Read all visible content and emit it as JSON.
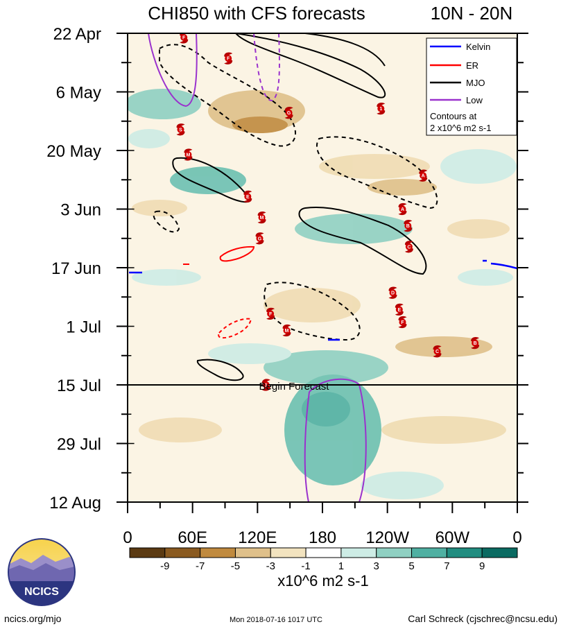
{
  "chart_data": {
    "type": "heatmap",
    "title": "CHI850 with CFS forecasts",
    "title_right": "10N - 20N",
    "y_tick_labels": [
      "22 Apr",
      "6 May",
      "20 May",
      "3 Jun",
      "17 Jun",
      "1 Jul",
      "15 Jul",
      "29 Jul",
      "12 Aug"
    ],
    "x_tick_labels": [
      "0",
      "60E",
      "120E",
      "180",
      "120W",
      "60W",
      "0"
    ],
    "x_range_deg": [
      0,
      360
    ],
    "y_range": [
      "2018-04-22",
      "2018-08-12"
    ],
    "forecast_start": "2018-07-15",
    "forecast_label": "Begin Forecast",
    "legend": {
      "position": "top-right",
      "entries": [
        {
          "name": "Kelvin",
          "color": "#0000ff"
        },
        {
          "name": "ER",
          "color": "#ff0000"
        },
        {
          "name": "MJO",
          "color": "#000000"
        },
        {
          "name": "Low",
          "color": "#9a32cd"
        }
      ],
      "note_line1": "Contours at",
      "note_line2": "2 x10^6 m2 s-1"
    },
    "colorbar": {
      "levels": [
        "-9",
        "-7",
        "-5",
        "-3",
        "-1",
        "1",
        "3",
        "5",
        "7",
        "9"
      ],
      "colors": [
        "#5b3a12",
        "#8a5a20",
        "#c08a3e",
        "#dfc08a",
        "#f2e3bf",
        "#ffffff",
        "#cdece5",
        "#8fd0c2",
        "#4fb0a2",
        "#218d80",
        "#0a6b62"
      ],
      "units": "x10^6 m2 s-1"
    },
    "storms": [
      {
        "label": "F",
        "lon": 52,
        "date": "2018-04-23"
      },
      {
        "label": "F",
        "lon": 93,
        "date": "2018-04-28"
      },
      {
        "label": "S",
        "lon": 49,
        "date": "2018-05-15"
      },
      {
        "label": "M",
        "lon": 56,
        "date": "2018-05-21"
      },
      {
        "label": "E",
        "lon": 111,
        "date": "2018-05-31"
      },
      {
        "label": "M",
        "lon": 124,
        "date": "2018-06-05"
      },
      {
        "label": "G",
        "lon": 122,
        "date": "2018-06-10"
      },
      {
        "label": "G",
        "lon": 149,
        "date": "2018-05-11"
      },
      {
        "label": "1",
        "lon": 234,
        "date": "2018-05-10"
      },
      {
        "label": "A",
        "lon": 273,
        "date": "2018-05-26"
      },
      {
        "label": "A",
        "lon": 254,
        "date": "2018-06-03"
      },
      {
        "label": "B",
        "lon": 259,
        "date": "2018-06-07"
      },
      {
        "label": "C",
        "lon": 260,
        "date": "2018-06-12"
      },
      {
        "label": "D",
        "lon": 245,
        "date": "2018-06-23"
      },
      {
        "label": "E",
        "lon": 251,
        "date": "2018-06-27"
      },
      {
        "label": "F",
        "lon": 254,
        "date": "2018-06-30"
      },
      {
        "label": "F",
        "lon": 132,
        "date": "2018-06-28"
      },
      {
        "label": "M",
        "lon": 147,
        "date": "2018-07-02"
      },
      {
        "label": "C",
        "lon": 286,
        "date": "2018-07-07"
      },
      {
        "label": "B",
        "lon": 321,
        "date": "2018-07-05"
      },
      {
        "label": "1",
        "lon": 128,
        "date": "2018-07-15"
      }
    ]
  },
  "footer": {
    "logo_text": "NCICS",
    "left": "ncics.org/mjo",
    "center": "Mon 2018-07-16 1017 UTC",
    "right": "Carl Schreck (cjschrec@ncsu.edu)"
  }
}
